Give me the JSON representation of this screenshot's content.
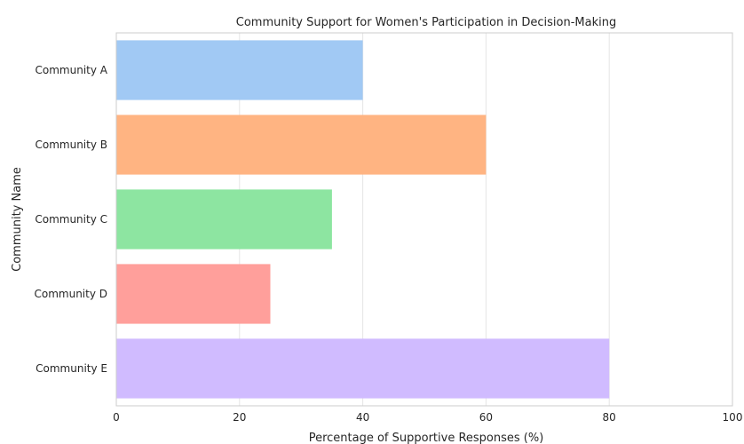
{
  "chart_data": {
    "type": "bar",
    "orientation": "horizontal",
    "title": "Community Support for Women's Participation in Decision-Making",
    "xlabel": "Percentage of Supportive Responses (%)",
    "ylabel": "Community Name",
    "categories": [
      "Community A",
      "Community B",
      "Community C",
      "Community D",
      "Community E"
    ],
    "values": [
      40,
      60,
      35,
      25,
      80
    ],
    "colors": [
      "#a1c9f4",
      "#ffb482",
      "#8de5a1",
      "#ff9f9b",
      "#d0bbff"
    ],
    "xlim": [
      0,
      100
    ],
    "xticks": [
      0,
      20,
      40,
      60,
      80,
      100
    ],
    "grid": "vertical",
    "legend": "none"
  }
}
